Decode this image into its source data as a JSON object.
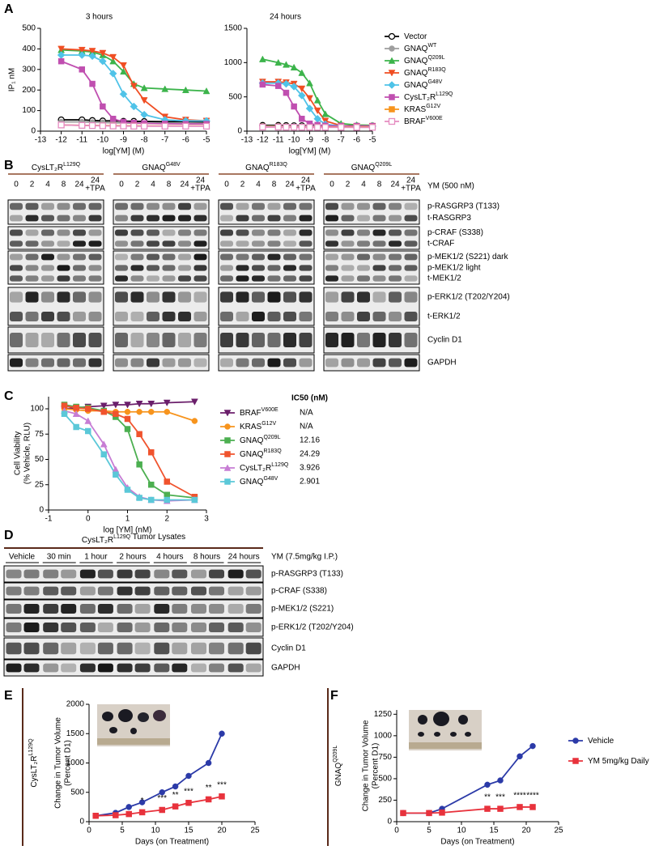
{
  "panel_labels": [
    "A",
    "B",
    "C",
    "D",
    "E",
    "F"
  ],
  "chart_data": [
    {
      "type": "line",
      "title": "3 hours",
      "ylabel": "IP₁ nM",
      "xlabel": "log[YM] (M)",
      "x": [
        -12,
        -11,
        -10.5,
        -10,
        -9.5,
        -9,
        -8.5,
        -8,
        -7,
        -6,
        -5
      ],
      "xlim": [
        -13,
        -5
      ],
      "xticks": [
        -13,
        -12,
        -11,
        -10,
        -9,
        -8,
        -7,
        -6,
        -5
      ],
      "ylim": [
        0,
        500
      ],
      "yticks": [
        0,
        100,
        200,
        300,
        400,
        500
      ],
      "series": [
        {
          "color": "#000000",
          "marker": "circle-open",
          "values": [
            55,
            55,
            52,
            50,
            50,
            48,
            48,
            47,
            46,
            46,
            45
          ]
        },
        {
          "color": "#9e9e9e",
          "marker": "circle",
          "values": [
            45,
            45,
            43,
            42,
            40,
            40,
            38,
            38,
            38,
            37,
            37
          ]
        },
        {
          "color": "#3cb44b",
          "marker": "triangle-up",
          "values": [
            395,
            390,
            385,
            370,
            340,
            290,
            230,
            210,
            205,
            200,
            195
          ]
        },
        {
          "color": "#f04e23",
          "marker": "triangle-down",
          "values": [
            400,
            395,
            390,
            380,
            360,
            320,
            220,
            150,
            70,
            55,
            50
          ]
        },
        {
          "color": "#4fc3e8",
          "marker": "diamond",
          "values": [
            370,
            370,
            365,
            340,
            280,
            180,
            120,
            80,
            55,
            50,
            50
          ]
        },
        {
          "color": "#c04fb0",
          "marker": "square",
          "values": [
            340,
            300,
            230,
            120,
            60,
            45,
            40,
            38,
            36,
            35,
            35
          ]
        },
        {
          "color": "#f7941d",
          "marker": "square",
          "values": [
            30,
            28,
            28,
            27,
            27,
            26,
            26,
            25,
            25,
            25,
            25
          ]
        },
        {
          "color": "#e58bc0",
          "marker": "square-open",
          "values": [
            30,
            28,
            27,
            26,
            25,
            25,
            24,
            24,
            24,
            24,
            24
          ]
        }
      ]
    },
    {
      "type": "line",
      "title": "24 hours",
      "xlabel": "log[YM] (M)",
      "legend": "right",
      "x": [
        -12,
        -11,
        -10.5,
        -10,
        -9.5,
        -9,
        -8.5,
        -8,
        -7,
        -6,
        -5
      ],
      "xlim": [
        -13,
        -5
      ],
      "xticks": [
        -13,
        -12,
        -11,
        -10,
        -9,
        -8,
        -7,
        -6,
        -5
      ],
      "ylim": [
        0,
        1500
      ],
      "yticks": [
        0,
        500,
        1000,
        1500
      ],
      "series": [
        {
          "name": "Vector",
          "color": "#000000",
          "marker": "circle-open",
          "values": [
            85,
            85,
            82,
            80,
            80,
            80,
            78,
            78,
            78,
            77,
            77
          ]
        },
        {
          "name": "GNAQ",
          "sup": "WT",
          "color": "#9e9e9e",
          "marker": "circle",
          "values": [
            75,
            75,
            73,
            72,
            72,
            70,
            70,
            70,
            70,
            70,
            70
          ]
        },
        {
          "name": "GNAQ",
          "sup": "Q209L",
          "color": "#3cb44b",
          "marker": "triangle-up",
          "values": [
            1050,
            1000,
            970,
            930,
            850,
            700,
            450,
            250,
            110,
            90,
            85
          ]
        },
        {
          "name": "GNAQ",
          "sup": "R183Q",
          "color": "#f04e23",
          "marker": "triangle-down",
          "values": [
            720,
            720,
            710,
            690,
            620,
            480,
            300,
            150,
            80,
            75,
            75
          ]
        },
        {
          "name": "GNAQ",
          "sup": "G48V",
          "color": "#4fc3e8",
          "marker": "diamond",
          "values": [
            700,
            700,
            690,
            650,
            520,
            330,
            180,
            100,
            75,
            70,
            70
          ]
        },
        {
          "name": "CysLT₂R",
          "sup": "L129Q",
          "color": "#c04fb0",
          "marker": "square",
          "values": [
            680,
            660,
            560,
            360,
            180,
            110,
            90,
            80,
            75,
            75,
            75
          ]
        },
        {
          "name": "KRAS",
          "sup": "G12V",
          "color": "#f7941d",
          "marker": "square",
          "values": [
            65,
            65,
            63,
            62,
            62,
            60,
            60,
            60,
            60,
            60,
            60
          ]
        },
        {
          "name": "BRAF",
          "sup": "V600E",
          "color": "#e58bc0",
          "marker": "square-open",
          "values": [
            60,
            60,
            58,
            58,
            57,
            57,
            56,
            56,
            56,
            55,
            55
          ]
        }
      ]
    },
    {
      "type": "line",
      "ylabel": [
        "Cell Viability",
        "(% Vehicle, RLU)"
      ],
      "xlabel": "log [YM] (nM)",
      "legend": "right",
      "legend_title": "IC50 (nM)",
      "x": [
        -0.6,
        -0.3,
        0,
        0.4,
        0.7,
        1,
        1.3,
        1.6,
        2,
        2.7
      ],
      "xlim": [
        -1,
        3
      ],
      "xticks": [
        -1,
        0,
        1,
        2,
        3
      ],
      "ylim": [
        0,
        112
      ],
      "yticks": [
        0,
        25,
        50,
        75,
        100
      ],
      "series": [
        {
          "name": "BRAF",
          "sup": "V600E",
          "ic50": "N/A",
          "color": "#6b1f6b",
          "marker": "triangle-down",
          "values": [
            100,
            101,
            102,
            103,
            104,
            104,
            105,
            105,
            106,
            107
          ]
        },
        {
          "name": "KRAS",
          "sup": "G12V",
          "ic50": "N/A",
          "color": "#f7941d",
          "marker": "circle",
          "values": [
            100,
            99,
            98,
            98,
            97,
            97,
            97,
            97,
            97,
            88
          ]
        },
        {
          "name": "GNAQ",
          "sup": "Q209L",
          "ic50": "12.16",
          "color": "#4caf50",
          "marker": "square",
          "values": [
            104,
            102,
            101,
            98,
            92,
            80,
            45,
            25,
            15,
            12
          ]
        },
        {
          "name": "GNAQ",
          "sup": "R183Q",
          "ic50": "24.29",
          "color": "#f0532d",
          "marker": "square",
          "values": [
            103,
            101,
            100,
            97,
            95,
            90,
            75,
            57,
            28,
            13
          ]
        },
        {
          "name": "CysLT₂R",
          "sup": "L129Q",
          "ic50": "3.926",
          "color": "#c77dd4",
          "marker": "triangle-up",
          "values": [
            98,
            95,
            88,
            65,
            40,
            22,
            13,
            10,
            9,
            10
          ]
        },
        {
          "name": "GNAQ",
          "sup": "G48V",
          "ic50": "2.901",
          "color": "#5bc8d8",
          "marker": "square",
          "values": [
            95,
            82,
            78,
            55,
            35,
            20,
            12,
            10,
            10,
            10
          ]
        }
      ]
    },
    {
      "type": "line",
      "side_label": "CysLT₂R",
      "side_sup": "L129Q",
      "ylabel": [
        "Change in Tumor Volume",
        "(Percent D1)"
      ],
      "xlabel": "Days (on Treatment)",
      "x": [
        1,
        4,
        6,
        8,
        11,
        13,
        15,
        18,
        20
      ],
      "xlim": [
        0,
        25
      ],
      "xticks": [
        0,
        5,
        10,
        15,
        20,
        25
      ],
      "ylim": [
        0,
        2000
      ],
      "yticks": [
        0,
        500,
        1000,
        1500,
        2000
      ],
      "series": [
        {
          "color": "#2b3aa8",
          "marker": "circle",
          "values": [
            100,
            150,
            250,
            330,
            500,
            600,
            780,
            1000,
            1500
          ]
        },
        {
          "color": "#e8323c",
          "marker": "square",
          "values": [
            100,
            110,
            130,
            160,
            200,
            260,
            320,
            380,
            430
          ],
          "significance": [
            null,
            null,
            null,
            "*",
            "***",
            "**",
            "***",
            "**",
            "***"
          ]
        }
      ]
    },
    {
      "type": "line",
      "side_label": "GNAQ",
      "side_sup": "Q209L",
      "ylabel": [
        "Change in Tumor Volume",
        "(Percent D1)"
      ],
      "xlabel": "Days (on Treatment)",
      "legend": "right",
      "x": [
        1,
        5,
        7,
        14,
        16,
        19,
        21
      ],
      "xlim": [
        0,
        25
      ],
      "xticks": [
        0,
        5,
        10,
        15,
        20,
        25
      ],
      "ylim": [
        0,
        1300
      ],
      "yticks": [
        0,
        250,
        500,
        750,
        1000,
        1250
      ],
      "series": [
        {
          "name": "Vehicle",
          "color": "#2b3aa8",
          "marker": "circle",
          "values": [
            100,
            100,
            150,
            430,
            480,
            760,
            880
          ]
        },
        {
          "name": "YM 5mg/kg Daily",
          "color": "#e8323c",
          "marker": "square",
          "values": [
            100,
            100,
            105,
            150,
            150,
            170,
            170
          ],
          "significance": [
            null,
            null,
            null,
            "**",
            "***",
            "****",
            "****"
          ]
        }
      ]
    }
  ],
  "blot_b": {
    "treatment": "YM (500 nM)",
    "lanes": [
      "0",
      "2",
      "4",
      "8",
      "24",
      "24"
    ],
    "tpa": "+TPA",
    "groups": [
      {
        "name": "CysLT₂R",
        "sup": "L129Q"
      },
      {
        "name": "GNAQ",
        "sup": "G48V"
      },
      {
        "name": "GNAQ",
        "sup": "R183Q"
      },
      {
        "name": "GNAQ",
        "sup": "Q209L"
      }
    ],
    "rows": [
      "p-RASGRP3 (T133)",
      "t-RASGRP3",
      "p-CRAF (S338)",
      "t-CRAF",
      "p-MEK1/2 (S221) dark",
      "p-MEK1/2 light",
      "t-MEK1/2",
      "p-ERK1/2 (T202/Y204)",
      "t-ERK1/2",
      "Cyclin D1",
      "GAPDH"
    ]
  },
  "blot_d": {
    "title": "CysLT₂R",
    "title_sup": "L129Q",
    "title_rest": " Tumor Lysates",
    "treatment": "YM (7.5mg/kg I.P.)",
    "groups": [
      "Vehicle",
      "30 min",
      "1 hour",
      "2 hours",
      "4 hours",
      "8 hours",
      "24 hours"
    ],
    "rows": [
      "p-RASGRP3 (T133)",
      "p-CRAF (S338)",
      "p-MEK1/2 (S221)",
      "p-ERK1/2 (T202/Y204)",
      "Cyclin D1",
      "GAPDH"
    ]
  }
}
